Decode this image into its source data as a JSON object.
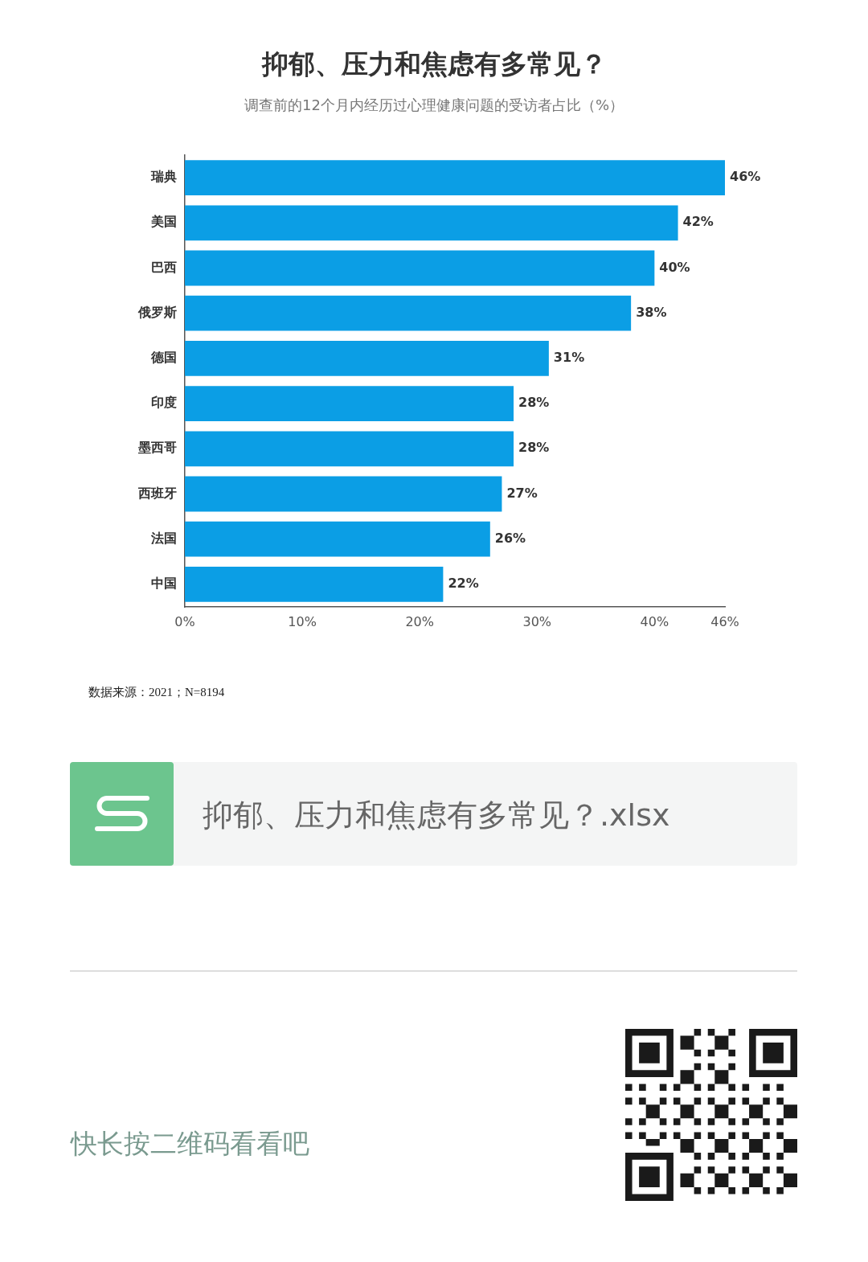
{
  "chart_data": {
    "type": "bar",
    "orientation": "horizontal",
    "title": "抑郁、压力和焦虑有多常见？",
    "subtitle": "调查前的12个月内经历过心理健康问题的受访者占比（%）",
    "categories": [
      "瑞典",
      "美国",
      "巴西",
      "俄罗斯",
      "德国",
      "印度",
      "墨西哥",
      "西班牙",
      "法国",
      "中国"
    ],
    "values": [
      46,
      42,
      40,
      38,
      31,
      28,
      28,
      27,
      26,
      22
    ],
    "value_labels": [
      "46%",
      "42%",
      "40%",
      "38%",
      "31%",
      "28%",
      "28%",
      "27%",
      "26%",
      "22%"
    ],
    "color": "#0b9ee5",
    "xlim": [
      0,
      46
    ],
    "xticks": [
      {
        "value": 0,
        "label": "0%"
      },
      {
        "value": 10,
        "label": "10%"
      },
      {
        "value": 20,
        "label": "20%"
      },
      {
        "value": 30,
        "label": "30%"
      },
      {
        "value": 40,
        "label": "40%"
      },
      {
        "value": 46,
        "label": "46%"
      }
    ],
    "grid": false,
    "legend": false,
    "annotations": [
      "数据来源：2021；N=8194",
      "抑郁、压力和焦虑有多常见？.xlsx",
      "快长按二维码看看吧"
    ]
  }
}
